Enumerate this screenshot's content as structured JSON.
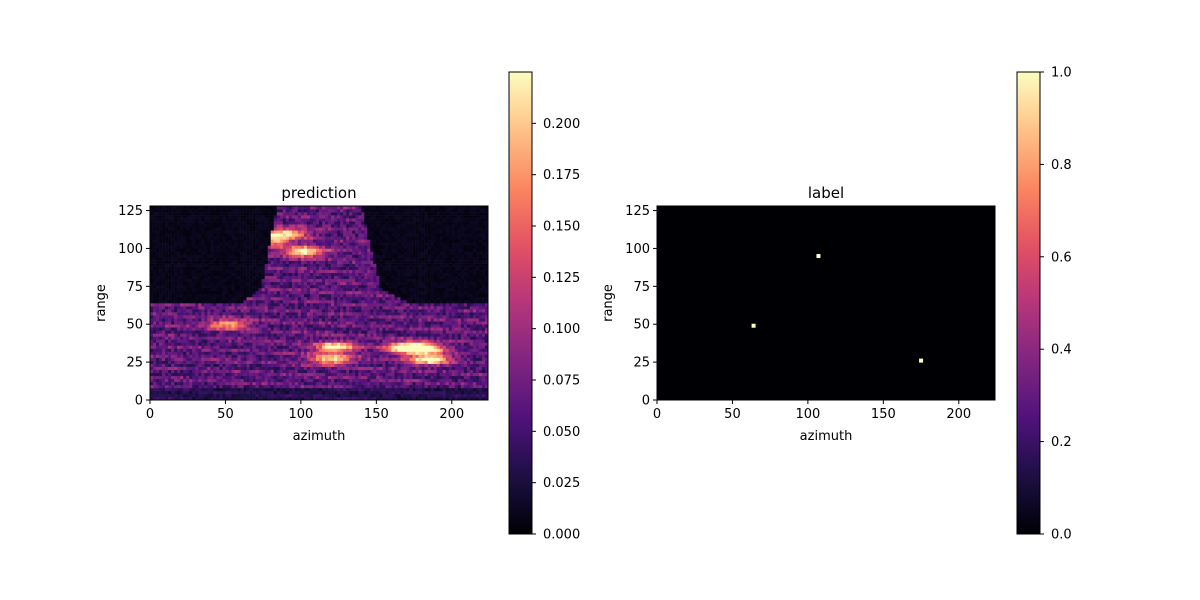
{
  "chart_data": [
    {
      "type": "heatmap",
      "title": "prediction",
      "xlabel": "azimuth",
      "ylabel": "range",
      "xlim": [
        0,
        224
      ],
      "ylim": [
        0,
        128
      ],
      "xticks": [
        0,
        50,
        100,
        150,
        200
      ],
      "yticks": [
        0,
        25,
        50,
        75,
        100,
        125
      ],
      "colormap": "magma",
      "colorbar": {
        "range": [
          0,
          0.225
        ],
        "ticks": [
          "0.000",
          "0.025",
          "0.050",
          "0.075",
          "0.100",
          "0.125",
          "0.150",
          "0.175",
          "0.200"
        ]
      },
      "grid": false,
      "description_regions": {
        "low_value_regions": [
          {
            "azimuth": [
              0,
              70
            ],
            "range": [
              64,
              128
            ]
          },
          {
            "azimuth": [
              155,
              224
            ],
            "range": [
              64,
              128
            ]
          }
        ],
        "hotspots": [
          {
            "azimuth": 102,
            "range": 98,
            "value": 0.2
          },
          {
            "azimuth": 123,
            "range": 35,
            "value": 0.2
          },
          {
            "azimuth": 120,
            "range": 27,
            "value": 0.18
          },
          {
            "azimuth": 180,
            "range": 34,
            "value": 0.22
          },
          {
            "azimuth": 185,
            "range": 27,
            "value": 0.2
          },
          {
            "azimuth": 170,
            "range": 35,
            "value": 0.19
          },
          {
            "azimuth": 52,
            "range": 50,
            "value": 0.15
          },
          {
            "azimuth": 78,
            "range": 105,
            "value": 0.16
          },
          {
            "azimuth": 90,
            "range": 110,
            "value": 0.18
          }
        ]
      }
    },
    {
      "type": "heatmap",
      "title": "label",
      "xlabel": "azimuth",
      "ylabel": "range",
      "xlim": [
        0,
        224
      ],
      "ylim": [
        0,
        128
      ],
      "xticks": [
        0,
        50,
        100,
        150,
        200
      ],
      "yticks": [
        0,
        25,
        50,
        75,
        100,
        125
      ],
      "colormap": "magma",
      "colorbar": {
        "range": [
          0,
          1
        ],
        "ticks": [
          "0.0",
          "0.2",
          "0.4",
          "0.6",
          "0.8",
          "1.0"
        ]
      },
      "grid": false,
      "points": [
        {
          "azimuth": 64,
          "range": 49,
          "value": 1.0
        },
        {
          "azimuth": 107,
          "range": 95,
          "value": 1.0
        },
        {
          "azimuth": 175,
          "range": 26,
          "value": 1.0
        }
      ]
    }
  ]
}
